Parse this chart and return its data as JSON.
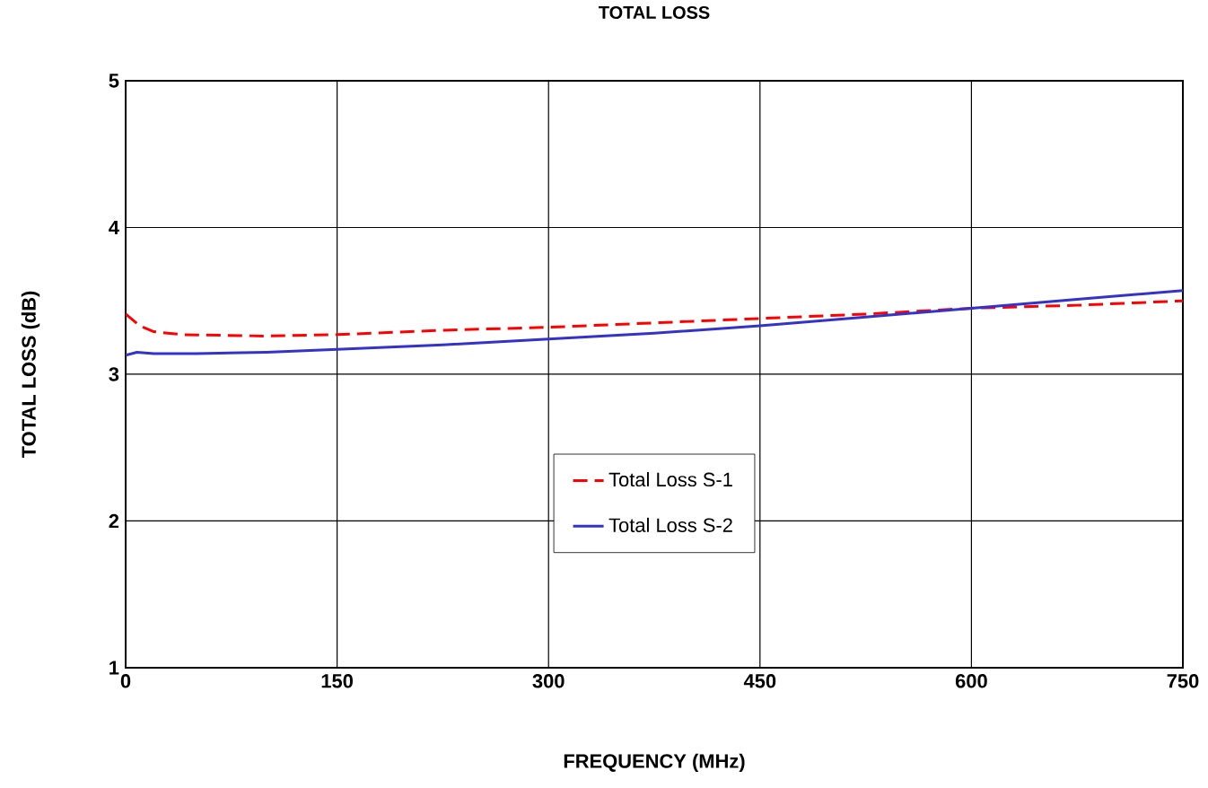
{
  "chart_data": {
    "type": "line",
    "title": "TOTAL LOSS",
    "xlabel": "FREQUENCY (MHz)",
    "ylabel": "TOTAL LOSS (dB)",
    "xlim": [
      0,
      750
    ],
    "ylim": [
      1,
      5
    ],
    "xticks": [
      0,
      150,
      300,
      450,
      600,
      750
    ],
    "yticks": [
      1,
      2,
      3,
      4,
      5
    ],
    "grid": true,
    "legend": "bottom",
    "series": [
      {
        "name": "Total Loss S-1",
        "color": "#ff0000",
        "line_style": "dashed",
        "x": [
          0,
          5,
          10,
          20,
          40,
          100,
          150,
          225,
          300,
          375,
          450,
          525,
          600,
          675,
          750
        ],
        "values": [
          3.41,
          3.37,
          3.33,
          3.29,
          3.27,
          3.26,
          3.27,
          3.3,
          3.32,
          3.35,
          3.38,
          3.41,
          3.45,
          3.47,
          3.5
        ]
      },
      {
        "name": "Total Loss S-2",
        "color": "#3333cc",
        "line_style": "solid",
        "x": [
          0,
          8,
          20,
          50,
          100,
          150,
          225,
          300,
          375,
          450,
          525,
          600,
          675,
          750
        ],
        "values": [
          3.13,
          3.15,
          3.14,
          3.14,
          3.15,
          3.17,
          3.2,
          3.24,
          3.28,
          3.33,
          3.39,
          3.45,
          3.51,
          3.57
        ]
      }
    ]
  }
}
